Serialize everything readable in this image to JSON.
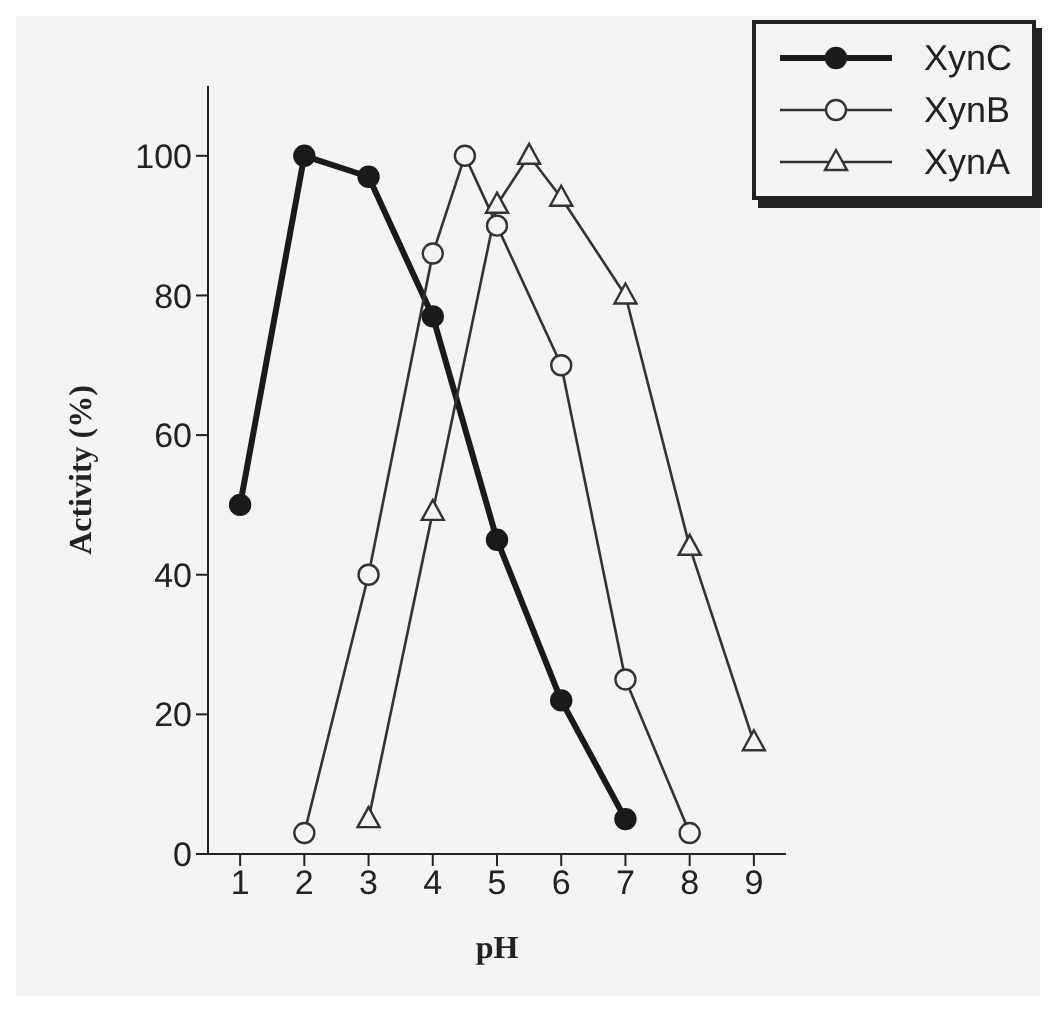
{
  "chart_data": {
    "type": "line",
    "xlabel": "pH",
    "ylabel": "Activity (%)",
    "xlim": [
      0.5,
      9.5
    ],
    "xticks": [
      1,
      2,
      3,
      4,
      5,
      6,
      7,
      8,
      9
    ],
    "ylim": [
      0,
      110
    ],
    "yticks": [
      0,
      20,
      40,
      60,
      80,
      100
    ],
    "grid": false,
    "legend": "top right",
    "line_style": "solid",
    "series": [
      {
        "name": "XynC",
        "color": "#1a1a1a",
        "marker": "circle",
        "x": [
          1,
          2,
          3,
          4,
          5,
          6,
          7
        ],
        "values": [
          50,
          100,
          97,
          77,
          45,
          22,
          5
        ]
      },
      {
        "name": "XynB",
        "color": "#333333",
        "marker": "circle",
        "x": [
          2,
          3,
          4,
          4.5,
          5,
          6,
          7,
          8
        ],
        "values": [
          3,
          40,
          86,
          100,
          90,
          70,
          25,
          3
        ]
      },
      {
        "name": "XynA",
        "color": "#333333",
        "marker": "triangle",
        "x": [
          3,
          4,
          5,
          5.5,
          6,
          7,
          8,
          9
        ],
        "values": [
          5,
          49,
          93,
          100,
          94,
          80,
          44,
          16
        ]
      }
    ]
  }
}
